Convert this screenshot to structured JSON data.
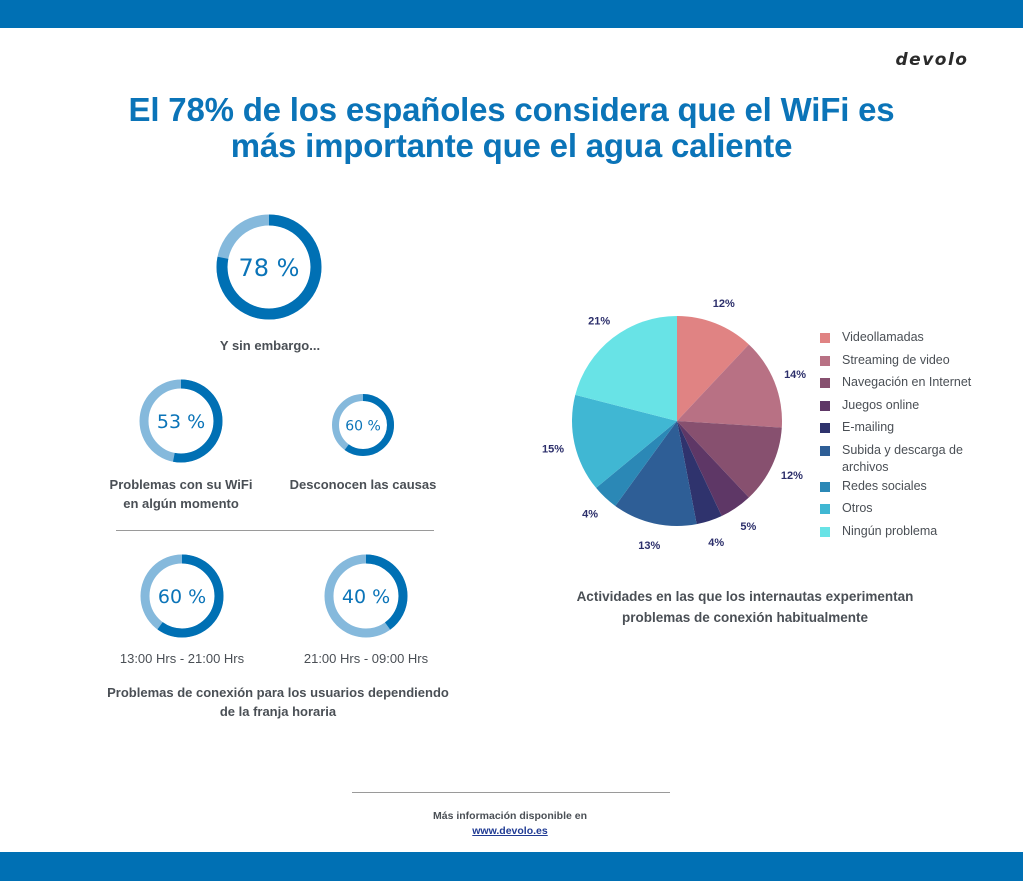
{
  "brand": {
    "logo_text": "devolo",
    "primary_color": "#0070b4",
    "title_color": "#0b74b8"
  },
  "title": {
    "line1": "El 78% de los españoles considera que el WiFi es",
    "line2": "más importante que el agua caliente"
  },
  "donuts": {
    "colors": {
      "filled": "#0070b4",
      "remaining": "#85b9dc"
    },
    "main": {
      "value": 78,
      "label": "78 %",
      "caption": "Y sin embargo..."
    },
    "wifi_problems": {
      "value": 53,
      "label": "53 %",
      "caption_line1": "Problemas con su WiFi",
      "caption_line2": "en algún momento"
    },
    "unknown_causes": {
      "value": 60,
      "label": "60 %",
      "caption": "Desconocen las causas"
    },
    "afternoon": {
      "value": 60,
      "label": "60 %",
      "caption": "13:00 Hrs - 21:00 Hrs"
    },
    "night": {
      "value": 40,
      "label": "40 %",
      "caption": "21:00 Hrs - 09:00 Hrs"
    },
    "time_section_caption_line1": "Problemas de conexión para los usuarios dependiendo",
    "time_section_caption_line2": "de la franja horaria"
  },
  "chart_data": {
    "type": "pie",
    "title": "Actividades en las que los internautas experimentan problemas de conexión habitualmente",
    "title_line1": "Actividades en las que los internautas experimentan",
    "title_line2": "problemas de conexión habitualmente",
    "legend_position": "right",
    "start_angle": "12 o'clock, clockwise",
    "slices": [
      {
        "name": "Videollamadas",
        "value": 12,
        "label": "12%",
        "color": "#e08383"
      },
      {
        "name": "Streaming de video",
        "value": 14,
        "label": "14%",
        "color": "#b87184"
      },
      {
        "name": "Navegación en Internet",
        "value": 12,
        "label": "12%",
        "color": "#87506f"
      },
      {
        "name": "Juegos online",
        "value": 5,
        "label": "5%",
        "color": "#5e3766"
      },
      {
        "name": "E-mailing",
        "value": 4,
        "label": "4%",
        "color": "#2f336d"
      },
      {
        "name": "Subida y descarga de archivos",
        "name_line1": "Subida y descarga de",
        "name_line2": "archivos",
        "value": 13,
        "label": "13%",
        "color": "#2e5e96"
      },
      {
        "name": "Redes sociales",
        "value": 4,
        "label": "4%",
        "color": "#2b88b6"
      },
      {
        "name": "Otros",
        "value": 15,
        "label": "15%",
        "color": "#40b7d3"
      },
      {
        "name": "Ningún problema",
        "value": 21,
        "label": "21%",
        "color": "#68e3e6"
      }
    ]
  },
  "footer": {
    "info_text": "Más información disponible en",
    "link_text": "www.devolo.es"
  }
}
